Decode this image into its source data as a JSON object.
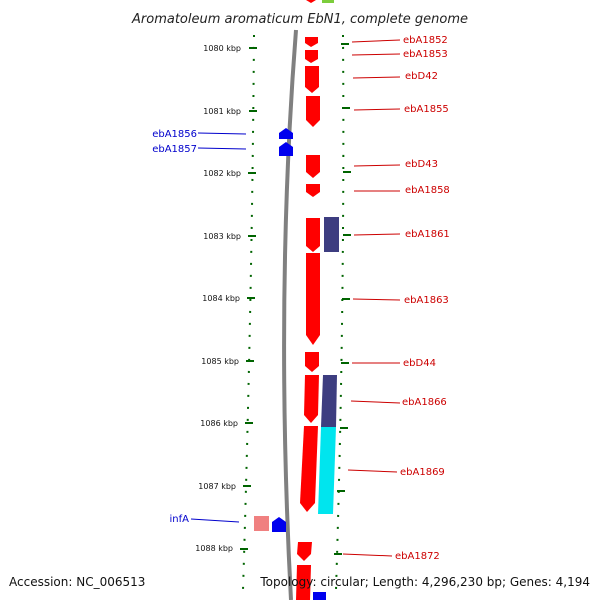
{
  "title": "Aromatoleum aromaticum EbN1, complete genome",
  "accession": "Accession: NC_006513",
  "topology": "Topology: circular; Length: 4,296,230 bp; Genes: 4,194",
  "colors": {
    "forward": "#ff0000",
    "reverse": "#0000ee",
    "forward_light": "#f08080",
    "navy": "#3d3d80",
    "cyan": "#00e5ee",
    "tick": "#006400",
    "backbone": "#808080",
    "label_forward": "#cc0000",
    "label_reverse": "#0000cc"
  },
  "ticks": [
    {
      "label": "1080 kbp"
    },
    {
      "label": "1081 kbp"
    },
    {
      "label": "1082 kbp"
    },
    {
      "label": "1083 kbp"
    },
    {
      "label": "1084 kbp"
    },
    {
      "label": "1085 kbp"
    },
    {
      "label": "1086 kbp"
    },
    {
      "label": "1087 kbp"
    },
    {
      "label": "1088 kbp"
    }
  ],
  "labels_right": [
    {
      "name": "ebA1852"
    },
    {
      "name": "ebA1853"
    },
    {
      "name": "ebD42"
    },
    {
      "name": "ebA1855"
    },
    {
      "name": "ebD43"
    },
    {
      "name": "ebA1858"
    },
    {
      "name": "ebA1861"
    },
    {
      "name": "ebA1863"
    },
    {
      "name": "ebD44"
    },
    {
      "name": "ebA1866"
    },
    {
      "name": "ebA1869"
    },
    {
      "name": "ebA1872"
    }
  ],
  "labels_left": [
    {
      "name": "ebA1856"
    },
    {
      "name": "ebA1857"
    },
    {
      "name": "infA"
    }
  ]
}
